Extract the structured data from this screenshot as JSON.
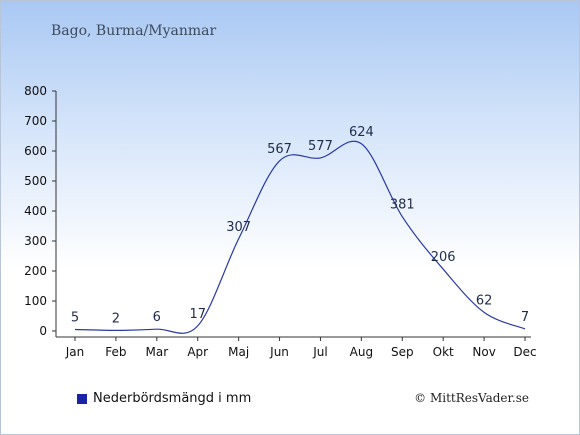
{
  "chart_data": {
    "type": "line",
    "title": "Bago, Burma/Myanmar",
    "categories": [
      "Jan",
      "Feb",
      "Mar",
      "Apr",
      "Maj",
      "Jun",
      "Jul",
      "Aug",
      "Sep",
      "Okt",
      "Nov",
      "Dec"
    ],
    "series": [
      {
        "name": "Nederbördsmängd i mm",
        "values": [
          5,
          2,
          6,
          17,
          307,
          567,
          577,
          624,
          381,
          206,
          62,
          7
        ]
      }
    ],
    "ylim": [
      0,
      800
    ],
    "yticks": [
      0,
      100,
      200,
      300,
      400,
      500,
      600,
      700,
      800
    ],
    "xlabel": "",
    "ylabel": "",
    "legend_position": "bottom-left",
    "grid": false,
    "line_color": "#2a3aa3",
    "legend_marker_color": "#1a23a6"
  },
  "credit": "© MittResVader.se"
}
